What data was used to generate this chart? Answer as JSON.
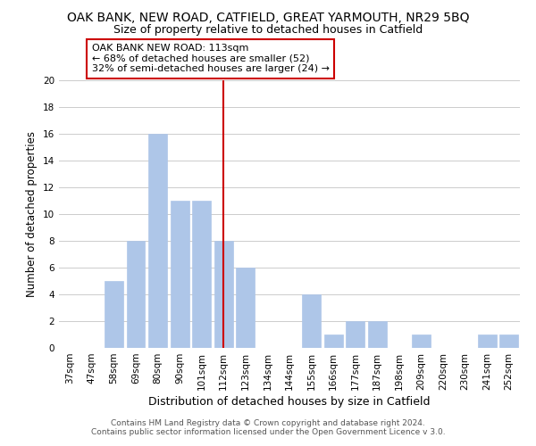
{
  "title": "OAK BANK, NEW ROAD, CATFIELD, GREAT YARMOUTH, NR29 5BQ",
  "subtitle": "Size of property relative to detached houses in Catfield",
  "xlabel": "Distribution of detached houses by size in Catfield",
  "ylabel": "Number of detached properties",
  "footer_line1": "Contains HM Land Registry data © Crown copyright and database right 2024.",
  "footer_line2": "Contains public sector information licensed under the Open Government Licence v 3.0.",
  "bar_labels": [
    "37sqm",
    "47sqm",
    "58sqm",
    "69sqm",
    "80sqm",
    "90sqm",
    "101sqm",
    "112sqm",
    "123sqm",
    "134sqm",
    "144sqm",
    "155sqm",
    "166sqm",
    "177sqm",
    "187sqm",
    "198sqm",
    "209sqm",
    "220sqm",
    "230sqm",
    "241sqm",
    "252sqm"
  ],
  "bar_values": [
    0,
    0,
    5,
    8,
    16,
    11,
    11,
    8,
    6,
    0,
    0,
    4,
    1,
    2,
    2,
    0,
    1,
    0,
    0,
    1,
    1
  ],
  "bar_color": "#aec6e8",
  "bar_edge_color": "#aec6e8",
  "reference_line_index": 7,
  "reference_line_color": "#cc0000",
  "annotation_line1": "OAK BANK NEW ROAD: 113sqm",
  "annotation_line2": "← 68% of detached houses are smaller (52)",
  "annotation_line3": "32% of semi-detached houses are larger (24) →",
  "annotation_box_edge_color": "#cc0000",
  "annotation_box_face_color": "#ffffff",
  "ylim": [
    0,
    20
  ],
  "yticks": [
    0,
    2,
    4,
    6,
    8,
    10,
    12,
    14,
    16,
    18,
    20
  ],
  "grid_color": "#cccccc",
  "background_color": "#ffffff",
  "title_fontsize": 10,
  "subtitle_fontsize": 9,
  "xlabel_fontsize": 9,
  "ylabel_fontsize": 8.5,
  "tick_fontsize": 7.5,
  "annotation_fontsize": 8,
  "footer_fontsize": 6.5
}
